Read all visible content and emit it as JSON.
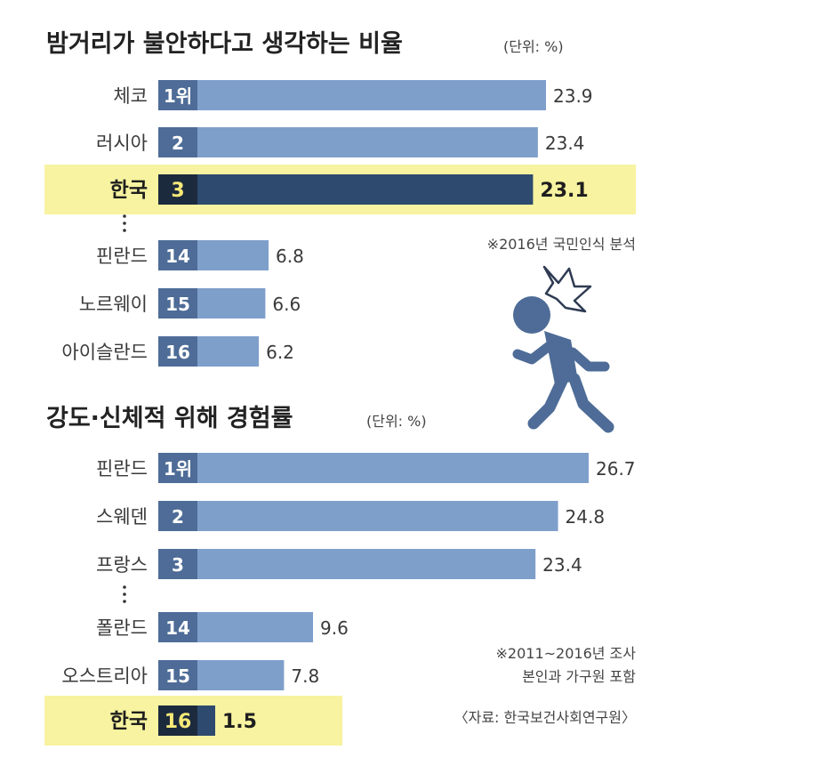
{
  "chart_data": [
    {
      "type": "bar",
      "title": "밤거리가 불안하다고 생각하는 비율",
      "unit": "(단위: %)",
      "note": "※2016년 국민인식 분석",
      "rows": [
        {
          "category": "체코",
          "rank": "1위",
          "value": 23.9,
          "value_label": "23.9",
          "highlight": false
        },
        {
          "category": "러시아",
          "rank": "2",
          "value": 23.4,
          "value_label": "23.4",
          "highlight": false
        },
        {
          "category": "한국",
          "rank": "3",
          "value": 23.1,
          "value_label": "23.1",
          "highlight": true
        },
        {
          "category": "핀란드",
          "rank": "14",
          "value": 6.8,
          "value_label": "6.8",
          "highlight": false
        },
        {
          "category": "노르웨이",
          "rank": "15",
          "value": 6.6,
          "value_label": "6.6",
          "highlight": false
        },
        {
          "category": "아이슬란드",
          "rank": "16",
          "value": 6.2,
          "value_label": "6.2",
          "highlight": false
        }
      ],
      "colors": {
        "bar": "#7f9fcb",
        "bar_highlight": "#2e4a6e",
        "rank_box": "#4e6c97",
        "rank_box_highlight": "#1c2a3d",
        "highlight_band": "#f7f3a0"
      }
    },
    {
      "type": "bar",
      "title": "강도·신체적 위해 경험률",
      "unit": "(단위: %)",
      "notes": [
        "※2011~2016년 조사",
        "본인과 가구원 포함"
      ],
      "source": "〈자료: 한국보건사회연구원〉",
      "rows": [
        {
          "category": "핀란드",
          "rank": "1위",
          "value": 26.7,
          "value_label": "26.7",
          "highlight": false
        },
        {
          "category": "스웨덴",
          "rank": "2",
          "value": 24.8,
          "value_label": "24.8",
          "highlight": false
        },
        {
          "category": "프랑스",
          "rank": "3",
          "value": 23.4,
          "value_label": "23.4",
          "highlight": false
        },
        {
          "category": "폴란드",
          "rank": "14",
          "value": 9.6,
          "value_label": "9.6",
          "highlight": false
        },
        {
          "category": "오스트리아",
          "rank": "15",
          "value": 7.8,
          "value_label": "7.8",
          "highlight": false
        },
        {
          "category": "한국",
          "rank": "16",
          "value": 1.5,
          "value_label": "1.5",
          "highlight": true
        }
      ],
      "colors": {
        "bar": "#7f9fcb",
        "bar_highlight": "#2e4a6e",
        "rank_box": "#4e6c97",
        "rank_box_highlight": "#1c2a3d",
        "highlight_band": "#f7f3a0"
      }
    }
  ],
  "icon": "running-person-icon"
}
